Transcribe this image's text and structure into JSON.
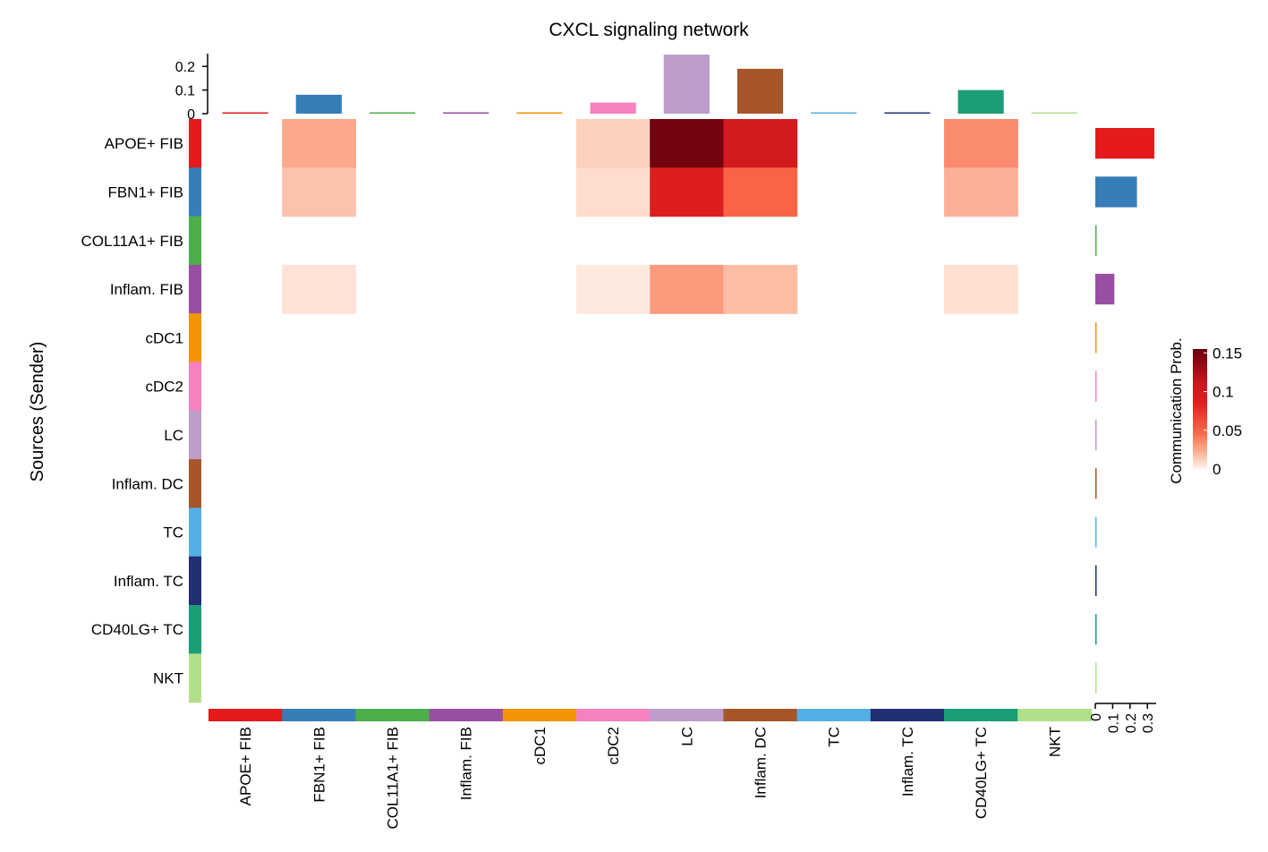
{
  "chart_data": {
    "type": "heatmap",
    "title": "CXCL signaling network",
    "ylabel": "Sources (Sender)",
    "row_labels": [
      "APOE+ FIB",
      "FBN1+ FIB",
      "COL11A1+ FIB",
      "Inflam. FIB",
      "cDC1",
      "cDC2",
      "LC",
      "Inflam. DC",
      "TC",
      "Inflam. TC",
      "CD40LG+ TC",
      "NKT"
    ],
    "col_labels": [
      "APOE+ FIB",
      "FBN1+ FIB",
      "COL11A1+ FIB",
      "Inflam. FIB",
      "cDC1",
      "cDC2",
      "LC",
      "Inflam. DC",
      "TC",
      "Inflam. TC",
      "CD40LG+ TC",
      "NKT"
    ],
    "group_colors": [
      "#E41A1C",
      "#377EB8",
      "#4DAF4A",
      "#984EA3",
      "#F29403",
      "#F781BF",
      "#BC9DCC",
      "#A65628",
      "#54B0E4",
      "#222F75",
      "#1B9E77",
      "#B2DF8A"
    ],
    "values": [
      [
        0,
        0.025,
        0,
        0,
        0,
        0.012,
        0.15,
        0.1,
        0,
        0,
        0.035,
        0
      ],
      [
        0,
        0.016,
        0,
        0,
        0,
        0.008,
        0.09,
        0.05,
        0,
        0,
        0.022,
        0
      ],
      [
        0,
        0,
        0,
        0,
        0,
        0,
        0,
        0,
        0,
        0,
        0,
        0
      ],
      [
        0,
        0.006,
        0,
        0,
        0,
        0.004,
        0.03,
        0.018,
        0,
        0,
        0.007,
        0
      ],
      [
        0,
        0,
        0,
        0,
        0,
        0,
        0,
        0,
        0,
        0,
        0,
        0
      ],
      [
        0,
        0,
        0,
        0,
        0,
        0,
        0,
        0,
        0,
        0,
        0,
        0
      ],
      [
        0,
        0,
        0,
        0,
        0,
        0,
        0,
        0,
        0,
        0,
        0,
        0
      ],
      [
        0,
        0,
        0,
        0,
        0,
        0,
        0,
        0,
        0,
        0,
        0,
        0
      ],
      [
        0,
        0,
        0,
        0,
        0,
        0,
        0,
        0,
        0,
        0,
        0,
        0
      ],
      [
        0,
        0,
        0,
        0,
        0,
        0,
        0,
        0,
        0,
        0,
        0,
        0
      ],
      [
        0,
        0,
        0,
        0,
        0,
        0,
        0,
        0,
        0,
        0,
        0,
        0
      ],
      [
        0,
        0,
        0,
        0,
        0,
        0,
        0,
        0,
        0,
        0,
        0,
        0
      ]
    ],
    "top_bar": {
      "values": [
        0.002,
        0.08,
        0.002,
        0.002,
        0.002,
        0.047,
        0.25,
        0.19,
        0.002,
        0.002,
        0.1,
        0.002
      ],
      "ylim": [
        0,
        0.25
      ],
      "ticks": [
        0,
        0.1,
        0.2
      ],
      "tick_labels": [
        "0",
        "0.1",
        "0.2"
      ]
    },
    "right_bar": {
      "values": [
        0.34,
        0.24,
        0.002,
        0.11,
        0.002,
        0.002,
        0.002,
        0.002,
        0.002,
        0.002,
        0.002,
        0.002
      ],
      "xlim": [
        0,
        0.34
      ],
      "ticks": [
        0,
        0.1,
        0.2,
        0.3
      ],
      "tick_labels": [
        "0",
        "0.1",
        "0.2",
        "0.3"
      ]
    },
    "colorbar": {
      "label": "Communication Prob.",
      "range": [
        0,
        0.155
      ],
      "ticks": [
        0,
        0.05,
        0.1,
        0.15
      ],
      "tick_labels": [
        "0",
        "0.05",
        "0.1",
        "0.15"
      ],
      "colors": [
        "#FFF5F0",
        "#FCBBA1",
        "#FB6A4A",
        "#E02020",
        "#C8161D",
        "#67000D"
      ],
      "stops": [
        0,
        0.12,
        0.3,
        0.55,
        0.72,
        1
      ]
    }
  }
}
